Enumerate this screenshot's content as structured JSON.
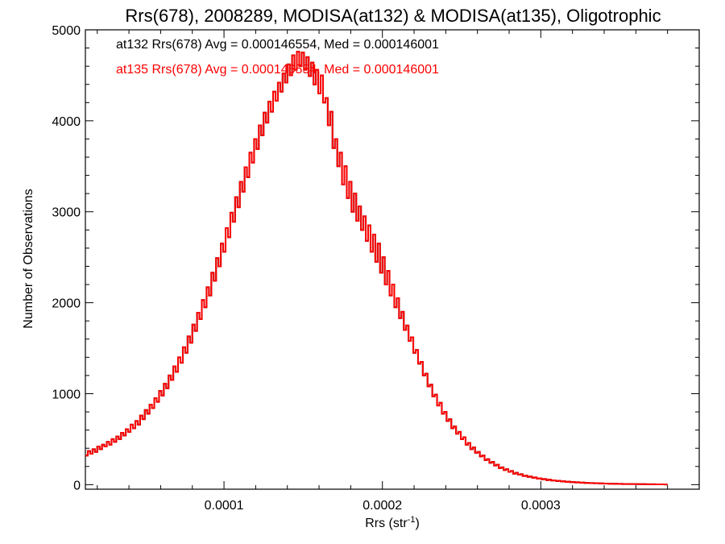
{
  "chart_data": {
    "type": "histogram",
    "title": "Rrs(678), 2008289, MODISA(at132) & MODISA(at135), Oligotrophic",
    "xlabel": "Rrs (str",
    "xlabel_sup": "-1",
    "xlabel_close": ")",
    "ylabel": "Number of Observations",
    "xlim": [
      1.25e-05,
      0.0004
    ],
    "ylim": [
      -50,
      5000
    ],
    "x_ticks": [
      {
        "value": 0.0001,
        "label": "0.0001"
      },
      {
        "value": 0.0002,
        "label": "0.0002"
      },
      {
        "value": 0.0003,
        "label": "0.0003"
      }
    ],
    "y_ticks": [
      {
        "value": 0,
        "label": "0"
      },
      {
        "value": 1000,
        "label": "1000"
      },
      {
        "value": 2000,
        "label": "2000"
      },
      {
        "value": 3000,
        "label": "3000"
      },
      {
        "value": 4000,
        "label": "4000"
      },
      {
        "value": 5000,
        "label": "5000"
      }
    ],
    "grid": false,
    "series": [
      {
        "name": "at132",
        "color": "#000000",
        "annotation": "at132 Rrs(678) Avg = 0.000146554, Med = 0.000146001",
        "x_start": 1.25e-05,
        "bin_width": 1.5e-06,
        "counts": [
          320,
          370,
          340,
          390,
          360,
          420,
          390,
          440,
          420,
          470,
          440,
          500,
          470,
          530,
          500,
          570,
          540,
          610,
          580,
          660,
          620,
          700,
          660,
          760,
          720,
          820,
          780,
          880,
          840,
          950,
          910,
          1030,
          980,
          1110,
          1060,
          1200,
          1150,
          1300,
          1240,
          1400,
          1340,
          1510,
          1450,
          1630,
          1560,
          1760,
          1690,
          1890,
          1820,
          2030,
          1950,
          2170,
          2080,
          2330,
          2240,
          2490,
          2400,
          2650,
          2560,
          2820,
          2720,
          2990,
          2890,
          3160,
          3050,
          3330,
          3220,
          3490,
          3380,
          3650,
          3540,
          3800,
          3690,
          3950,
          3840,
          4090,
          3980,
          4210,
          4100,
          4320,
          4220,
          4420,
          4320,
          4520,
          4420,
          4620,
          4500,
          4720,
          4560,
          4760,
          4600,
          4750,
          4560,
          4700,
          4490,
          4640,
          4400,
          4560,
          4300,
          4500,
          4200,
          4250,
          3950,
          4100,
          3700,
          3800,
          3500,
          3650,
          3300,
          3500,
          3150,
          3330,
          3000,
          3200,
          2900,
          3060,
          2800,
          2950,
          2680,
          2850,
          2560,
          2750,
          2450,
          2650,
          2330,
          2500,
          2200,
          2350,
          2080,
          2200,
          1950,
          2050,
          1830,
          1900,
          1700,
          1750,
          1580,
          1620,
          1450,
          1480,
          1330,
          1350,
          1200,
          1220,
          1080,
          1100,
          970,
          990,
          870,
          900,
          780,
          800,
          700,
          720,
          620,
          640,
          560,
          580,
          500,
          520,
          440,
          460,
          390,
          410,
          350,
          360,
          310,
          320,
          270,
          280,
          240,
          250,
          210,
          220,
          180,
          190,
          160,
          170,
          140,
          150,
          120,
          130,
          110,
          115,
          95,
          100,
          85,
          90,
          75,
          80,
          65,
          70,
          58,
          62,
          50,
          55,
          45,
          48,
          40,
          42,
          35,
          38,
          30,
          33,
          27,
          29,
          24,
          26,
          21,
          23,
          19,
          20,
          17,
          18,
          15,
          16,
          13,
          14,
          12,
          12,
          10,
          11,
          9,
          10,
          8,
          9,
          7,
          8,
          7,
          7,
          6,
          6,
          5,
          5,
          5,
          5,
          4,
          4,
          4,
          4,
          3,
          3,
          3,
          3,
          2
        ]
      },
      {
        "name": "at135",
        "color": "#ff0000",
        "annotation": "at135 Rrs(678) Avg = 0.000146554, Med = 0.000146001",
        "same_as": "at132"
      }
    ]
  }
}
